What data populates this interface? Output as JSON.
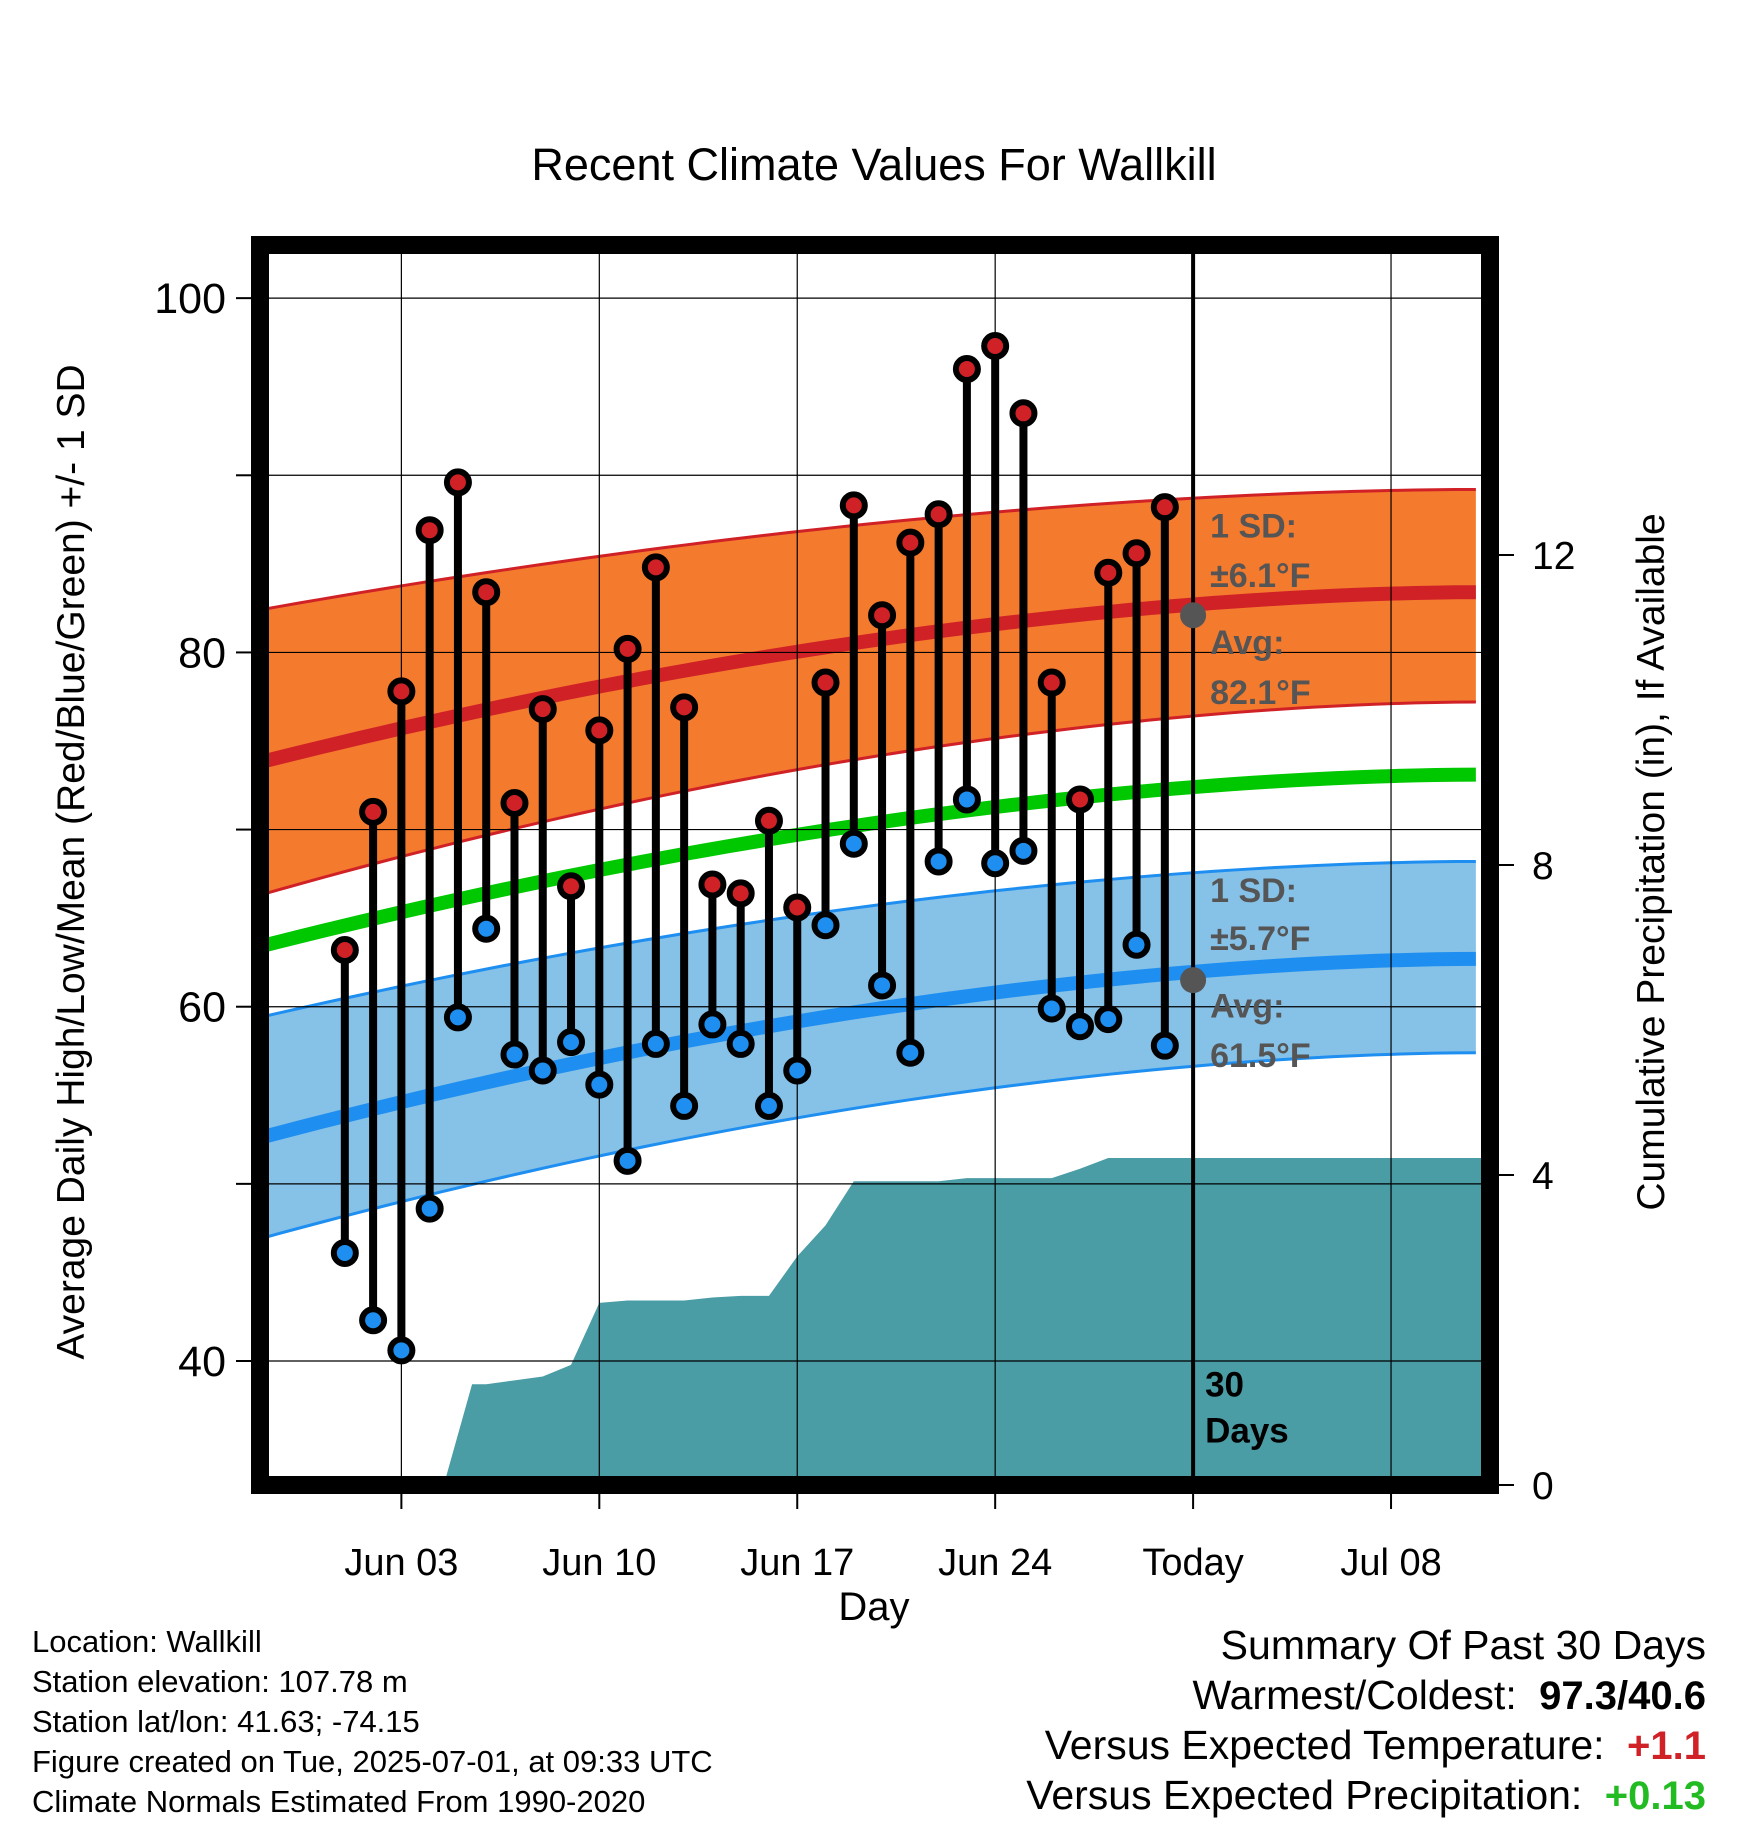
{
  "chart_data": {
    "type": "line",
    "title": "Recent Climate Values For Wallkill",
    "xlabel": "Day",
    "ylabel": "Average Daily High/Low/Mean (Red/Blue/Green) +/- 1 SD",
    "y2label": "Cumulative Precipitation (in), If Available",
    "ylim": [
      33,
      103
    ],
    "y2lim": [
      0,
      16
    ],
    "x_range_days": [
      -33,
      10.5
    ],
    "x_ticks": [
      {
        "day": -28,
        "label": "Jun 03"
      },
      {
        "day": -21,
        "label": "Jun 10"
      },
      {
        "day": -14,
        "label": "Jun 17"
      },
      {
        "day": -7,
        "label": "Jun 24"
      },
      {
        "day": 0,
        "label": "Today"
      },
      {
        "day": 7,
        "label": "Jul 08"
      }
    ],
    "y_ticks": [
      40,
      60,
      80,
      100
    ],
    "y2_ticks": [
      0,
      4,
      8,
      12
    ],
    "grid": true,
    "today_line_day": 0,
    "days_label": "30\nDays",
    "days": [
      -30,
      -29,
      -28,
      -27,
      -26,
      -25,
      -24,
      -23,
      -22,
      -21,
      -20,
      -19,
      -18,
      -17,
      -16,
      -15,
      -14,
      -13,
      -12,
      -11,
      -10,
      -9,
      -8,
      -7,
      -6,
      -5,
      -4,
      -3,
      -2,
      -1
    ],
    "highs": [
      63.2,
      71.0,
      77.8,
      86.9,
      89.6,
      83.4,
      71.5,
      76.8,
      66.8,
      75.6,
      80.2,
      84.8,
      76.9,
      66.9,
      66.4,
      70.5,
      65.6,
      78.3,
      88.3,
      82.1,
      86.2,
      87.8,
      96.0,
      97.3,
      93.5,
      78.3,
      71.7,
      84.5,
      85.6,
      88.2
    ],
    "lows": [
      46.1,
      42.3,
      40.6,
      48.6,
      59.4,
      64.4,
      57.3,
      56.4,
      58.0,
      55.6,
      51.3,
      57.9,
      54.4,
      59.0,
      57.9,
      54.4,
      56.4,
      64.6,
      69.2,
      61.2,
      57.4,
      68.2,
      71.7,
      68.1,
      68.8,
      59.9,
      58.9,
      59.3,
      63.5,
      57.8
    ],
    "normals": {
      "start_day": -33,
      "end_day": 10,
      "high_mean": [
        73.8,
        83.4
      ],
      "high_sd_band": [
        [
          66.3,
          82.4
        ],
        [
          77.2,
          89.2
        ]
      ],
      "low_mean": [
        52.6,
        62.7
      ],
      "low_sd_band": [
        [
          46.9,
          59.4
        ],
        [
          57.4,
          68.2
        ]
      ],
      "daily_mean": [
        63.4,
        73.1
      ]
    },
    "precipitation": {
      "days": [
        -26.5,
        -25.5,
        -25,
        -24,
        -23,
        -22,
        -21,
        -20,
        -19,
        -18,
        -17,
        -16,
        -15,
        -14,
        -13,
        -12,
        -11,
        -10,
        -9,
        -8,
        -7,
        -6,
        -5,
        -4,
        -3,
        -2,
        -1,
        0,
        10.5
      ],
      "cumulative_in": [
        0,
        1.3,
        1.3,
        1.35,
        1.4,
        1.55,
        2.35,
        2.38,
        2.38,
        2.38,
        2.42,
        2.44,
        2.44,
        2.95,
        3.35,
        3.92,
        3.92,
        3.92,
        3.92,
        3.96,
        3.96,
        3.96,
        3.96,
        4.08,
        4.22,
        4.22,
        4.22,
        4.22,
        4.22
      ]
    },
    "annotations": {
      "high_sd_label": "1 SD:",
      "high_sd_value": "±6.1°F",
      "high_avg_label": "Avg:",
      "high_avg_value": "82.1°F",
      "high_avg_marker": 82.1,
      "low_sd_label": "1 SD:",
      "low_sd_value": "±5.7°F",
      "low_avg_label": "Avg:",
      "low_avg_value": "61.5°F",
      "low_avg_marker": 61.5
    },
    "colors": {
      "high_band": "#f47a2e",
      "high_line": "#d02127",
      "low_band": "#86c1e8",
      "low_line": "#1e8ff0",
      "mean_line": "#00c800",
      "precip_fill": "#4a9ca5",
      "high_dot": "#d02127",
      "low_dot": "#1e8ff0",
      "annotation_text": "#555555"
    }
  },
  "footer": {
    "location": "Location: Wallkill",
    "elevation": "Station elevation: 107.78 m",
    "latlon": "Station lat/lon: 41.63; -74.15",
    "created": "Figure created on Tue, 2025-07-01, at 09:33 UTC",
    "normals": "Climate Normals Estimated From 1990-2020"
  },
  "summary": {
    "heading": "Summary Of Past 30 Days",
    "warm_cold_label": "Warmest/Coldest:",
    "warm_cold_value": "97.3/40.6",
    "temp_label": "Versus Expected Temperature:",
    "temp_value": "+1.1",
    "temp_color": "#d02127",
    "precip_label": "Versus Expected Precipitation:",
    "precip_value": "+0.13",
    "precip_color": "#22bb22"
  }
}
